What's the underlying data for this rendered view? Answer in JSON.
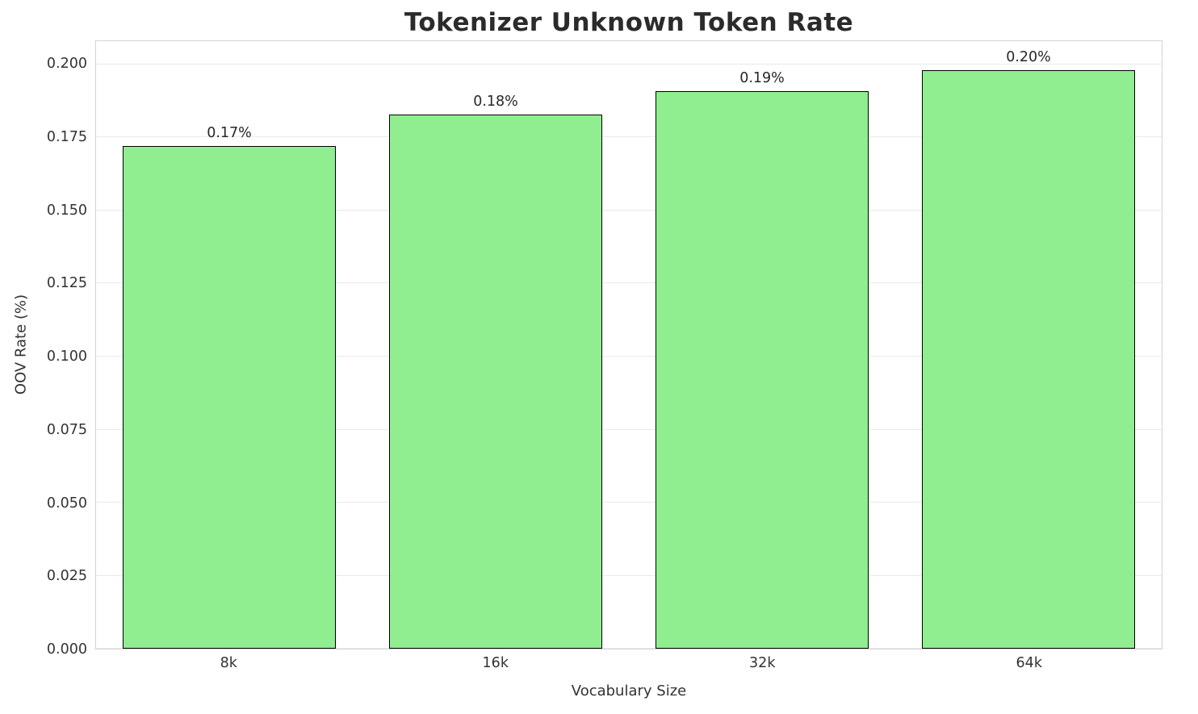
{
  "chart_data": {
    "type": "bar",
    "title": "Tokenizer Unknown Token Rate",
    "xlabel": "Vocabulary Size",
    "ylabel": "OOV Rate (%)",
    "categories": [
      "8k",
      "16k",
      "32k",
      "64k"
    ],
    "values": [
      0.172,
      0.183,
      0.191,
      0.198
    ],
    "bar_labels": [
      "0.17%",
      "0.18%",
      "0.19%",
      "0.20%"
    ],
    "yticks": [
      0.0,
      0.025,
      0.05,
      0.075,
      0.1,
      0.125,
      0.15,
      0.175,
      0.2
    ],
    "ytick_labels": [
      "0.000",
      "0.025",
      "0.050",
      "0.075",
      "0.100",
      "0.125",
      "0.150",
      "0.175",
      "0.200"
    ],
    "ylim": [
      0,
      0.208
    ],
    "bar_width_fraction": 0.8,
    "grid": true,
    "legend_position": "none",
    "colors": {
      "bar_fill": "#90EE90",
      "bar_edge": "#000000",
      "gridline": "#e9e9e9",
      "plot_border": "#d4d4d4",
      "text": "#262626"
    }
  }
}
